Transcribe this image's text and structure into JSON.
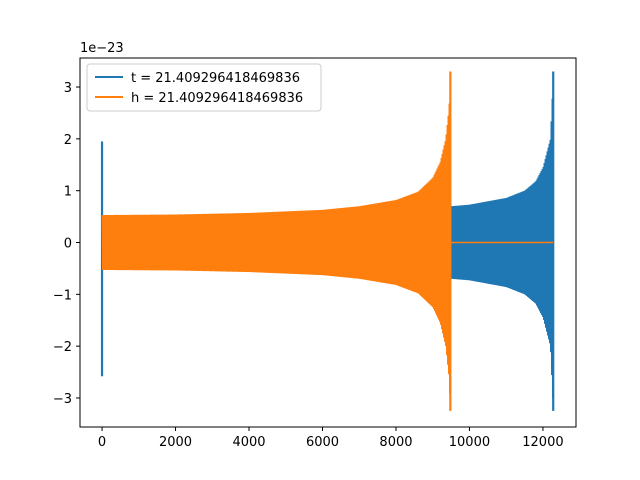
{
  "chart_data": {
    "type": "line",
    "title": "",
    "xlabel": "",
    "ylabel": "",
    "offset_text": "1e−23",
    "xlim": [
      -600,
      12900
    ],
    "ylim": [
      -3.56,
      3.56
    ],
    "x_ticks": [
      0,
      2000,
      4000,
      6000,
      8000,
      10000,
      12000
    ],
    "x_tick_labels": [
      "0",
      "2000",
      "4000",
      "6000",
      "8000",
      "10000",
      "12000"
    ],
    "y_ticks": [
      -3,
      -2,
      -1,
      0,
      1,
      2,
      3
    ],
    "y_tick_labels": [
      "−3",
      "−2",
      "−1",
      "0",
      "1",
      "2",
      "3"
    ],
    "grid": false,
    "legend_position": "upper-left",
    "series": [
      {
        "name": "t = 21.409296418469836",
        "color": "#1f77b4",
        "envelope": {
          "x": [
            0,
            2000,
            4000,
            6000,
            8000,
            9000,
            9500,
            10000,
            11000,
            11500,
            11800,
            12000,
            12200,
            12280
          ],
          "amplitude": [
            0.5,
            0.53,
            0.56,
            0.61,
            0.65,
            0.68,
            0.7,
            0.73,
            0.86,
            1.0,
            1.18,
            1.45,
            2.0,
            3.3
          ]
        },
        "spike_at_start": {
          "x": 0,
          "max": 1.95,
          "min": -2.58
        },
        "end_spike": {
          "max": 3.3,
          "min": -3.25
        },
        "x_end": 12280
      },
      {
        "name": "h = 21.409296418469836",
        "color": "#ff7f0e",
        "envelope": {
          "x": [
            0,
            2000,
            4000,
            6000,
            7000,
            8000,
            8600,
            9000,
            9200,
            9350,
            9440,
            9480
          ],
          "amplitude": [
            0.53,
            0.54,
            0.57,
            0.63,
            0.7,
            0.82,
            0.98,
            1.25,
            1.55,
            2.0,
            2.6,
            3.3
          ]
        },
        "end_spike": {
          "max": 3.3,
          "min": -3.25
        },
        "flat_after": {
          "x_start": 9480,
          "x_end": 12280,
          "value": 0
        }
      }
    ]
  }
}
